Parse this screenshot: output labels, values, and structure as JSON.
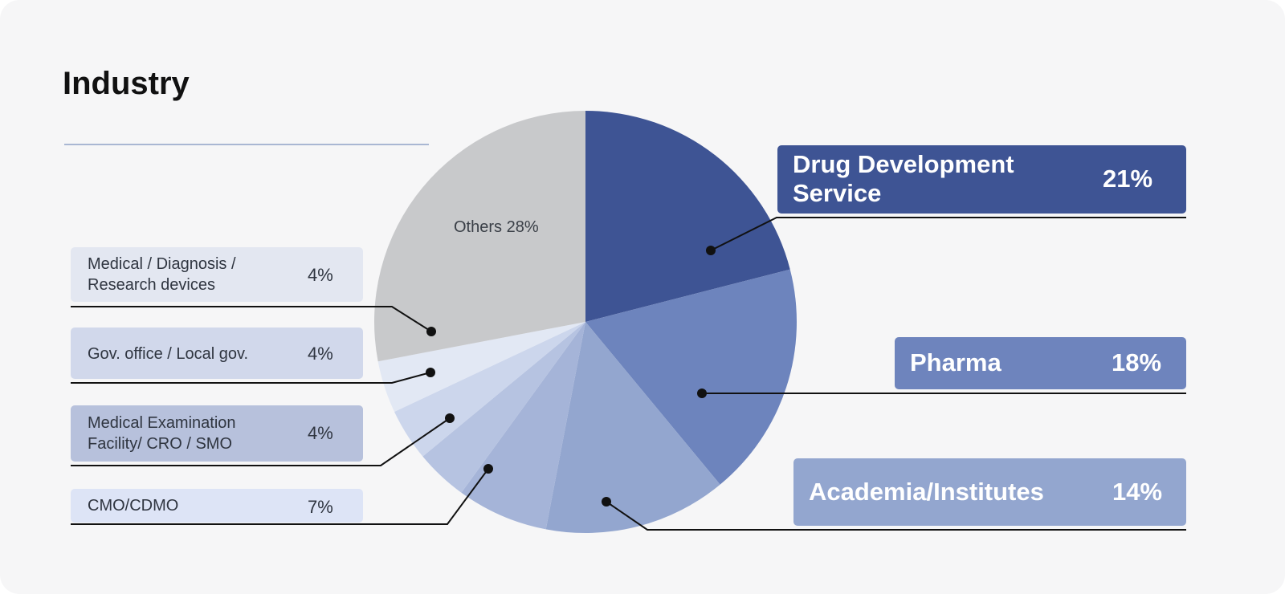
{
  "chart_data": {
    "type": "pie",
    "title": "Industry",
    "slices": [
      {
        "label": "Drug Development Service",
        "percent_label": "21%",
        "value": 21,
        "color": "#3e5494"
      },
      {
        "label": "Pharma",
        "percent_label": "18%",
        "value": 18,
        "color": "#6d84bd"
      },
      {
        "label": "Academia/Institutes",
        "percent_label": "14%",
        "value": 14,
        "color": "#93a6cf"
      },
      {
        "label": "CMO/CDMO",
        "percent_label": "7%",
        "value": 7,
        "color": "#a5b4d8"
      },
      {
        "label": "Medical Examination Facility/ CRO / SMO",
        "percent_label": "4%",
        "value": 4,
        "color": "#b6c3e1"
      },
      {
        "label": "Gov. office / Local gov.",
        "percent_label": "4%",
        "value": 4,
        "color": "#ccd6ec"
      },
      {
        "label": "Medical / Diagnosis / Research devices",
        "percent_label": "4%",
        "value": 4,
        "color": "#e2e8f4"
      },
      {
        "label": "Others",
        "percent_label": "28%",
        "value": 28,
        "color": "#c8c9cb"
      }
    ],
    "labels_display": {
      "drug_name_lines": [
        "Drug Development",
        "Service"
      ],
      "med_exam_lines": [
        "Medical Examination",
        "Facility/ CRO / SMO"
      ],
      "med_diag_lines": [
        "Medical / Diagnosis /",
        "Research devices"
      ],
      "others_text": "Others 28%"
    },
    "colors": {
      "box_medical_diagnosis": "#e3e7f1",
      "box_gov_office": "#d1d8eb",
      "box_medical_exam": "#b7c1dc",
      "box_cmo": "#dde4f6",
      "box_drug": "#3e5494",
      "box_pharma": "#6e84bd",
      "box_academia": "#93a6cf"
    }
  }
}
